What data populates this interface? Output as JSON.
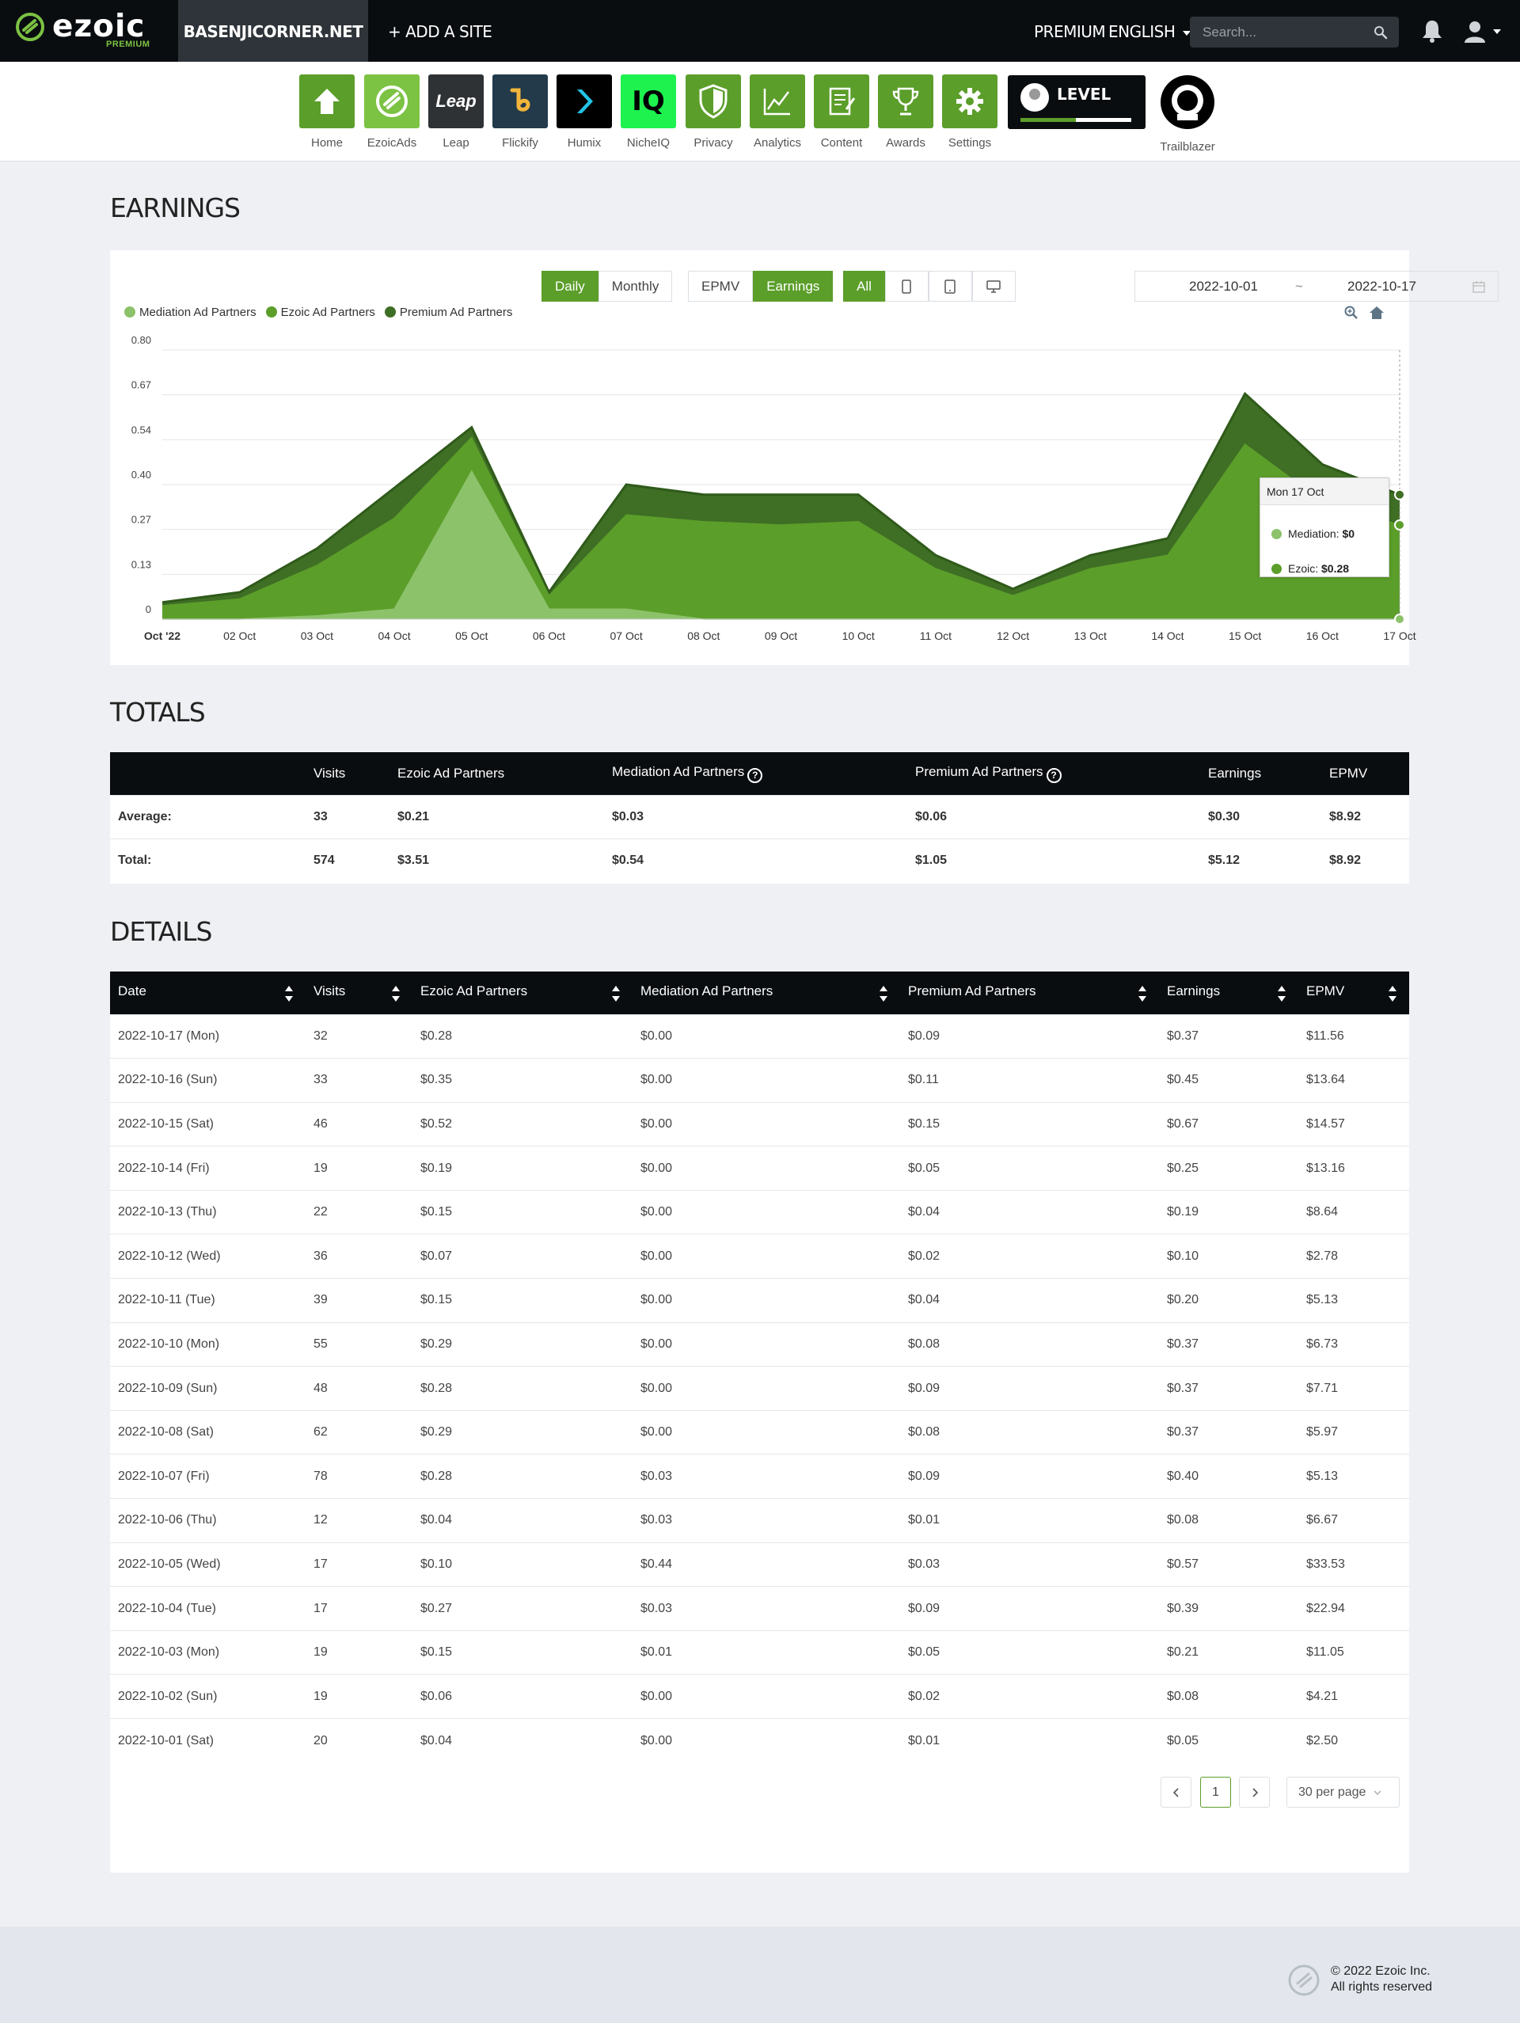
{
  "nav": {
    "logo": "ezoic",
    "logo_sub": "PREMIUM",
    "site": "BASENJICORNER.NET",
    "add_site": "+ ADD A SITE",
    "premium": "PREMIUM",
    "language": "ENGLISH",
    "search_placeholder": "Search..."
  },
  "apps": [
    {
      "label": "Home",
      "icon": "home-icon"
    },
    {
      "label": "EzoicAds",
      "icon": "ezoicads-icon"
    },
    {
      "label": "Leap",
      "icon": "leap-icon",
      "text": "Leap"
    },
    {
      "label": "Flickify",
      "icon": "flickify-icon"
    },
    {
      "label": "Humix",
      "icon": "humix-icon"
    },
    {
      "label": "NicheIQ",
      "icon": "nicheiq-icon",
      "text": "IQ"
    },
    {
      "label": "Privacy",
      "icon": "shield-icon"
    },
    {
      "label": "Analytics",
      "icon": "analytics-icon"
    },
    {
      "label": "Content",
      "icon": "content-icon"
    },
    {
      "label": "Awards",
      "icon": "trophy-icon"
    },
    {
      "label": "Settings",
      "icon": "gear-icon"
    }
  ],
  "level_badge": {
    "text": "LEVEL",
    "progress": 0.5
  },
  "trailblazer": {
    "label": "Trailblazer"
  },
  "earnings": {
    "title": "EARNINGS",
    "buttons": {
      "daily": "Daily",
      "monthly": "Monthly",
      "epmv": "EPMV",
      "earnings": "Earnings",
      "all": "All"
    },
    "date_from": "2022-10-01",
    "date_sep": "~",
    "date_to": "2022-10-17",
    "tooltip": {
      "title": "Mon 17 Oct",
      "rows": [
        {
          "label": "Mediation:",
          "value": "$0"
        },
        {
          "label": "Ezoic:",
          "value": "$0.28"
        }
      ]
    }
  },
  "chart_data": {
    "type": "area",
    "stacked": true,
    "categories": [
      "Oct '22",
      "02 Oct",
      "03 Oct",
      "04 Oct",
      "05 Oct",
      "06 Oct",
      "07 Oct",
      "08 Oct",
      "09 Oct",
      "10 Oct",
      "11 Oct",
      "12 Oct",
      "13 Oct",
      "14 Oct",
      "15 Oct",
      "16 Oct",
      "17 Oct"
    ],
    "series": [
      {
        "name": "Mediation Ad Partners",
        "color": "#8cc26a",
        "values": [
          0.0,
          0.0,
          0.01,
          0.03,
          0.44,
          0.03,
          0.03,
          0.0,
          0.0,
          0.0,
          0.0,
          0.0,
          0.0,
          0.0,
          0.0,
          0.0,
          0.0
        ]
      },
      {
        "name": "Ezoic Ad Partners",
        "color": "#5b9e2a",
        "values": [
          0.04,
          0.06,
          0.15,
          0.27,
          0.1,
          0.04,
          0.28,
          0.29,
          0.28,
          0.29,
          0.15,
          0.07,
          0.15,
          0.19,
          0.52,
          0.35,
          0.28
        ]
      },
      {
        "name": "Premium Ad Partners",
        "color": "#3f6e25",
        "values": [
          0.01,
          0.02,
          0.05,
          0.09,
          0.03,
          0.01,
          0.09,
          0.08,
          0.09,
          0.08,
          0.04,
          0.02,
          0.04,
          0.05,
          0.15,
          0.11,
          0.09
        ]
      }
    ],
    "ylim": [
      0,
      0.8
    ],
    "yticks": [
      "0",
      "0.13",
      "0.27",
      "0.40",
      "0.54",
      "0.67",
      "0.80"
    ],
    "legend": "top-left",
    "grid": true
  },
  "totals": {
    "title": "TOTALS",
    "headers": [
      "",
      "Visits",
      "Ezoic Ad Partners",
      "Mediation Ad Partners",
      "Premium Ad Partners",
      "Earnings",
      "EPMV"
    ],
    "rows": [
      [
        "Average:",
        "33",
        "$0.21",
        "$0.03",
        "$0.06",
        "$0.30",
        "$8.92"
      ],
      [
        "Total:",
        "574",
        "$3.51",
        "$0.54",
        "$1.05",
        "$5.12",
        "$8.92"
      ]
    ]
  },
  "details": {
    "title": "DETAILS",
    "headers": [
      "Date",
      "Visits",
      "Ezoic Ad Partners",
      "Mediation Ad Partners",
      "Premium Ad Partners",
      "Earnings",
      "EPMV"
    ],
    "rows": [
      [
        "2022-10-17 (Mon)",
        "32",
        "$0.28",
        "$0.00",
        "$0.09",
        "$0.37",
        "$11.56"
      ],
      [
        "2022-10-16 (Sun)",
        "33",
        "$0.35",
        "$0.00",
        "$0.11",
        "$0.45",
        "$13.64"
      ],
      [
        "2022-10-15 (Sat)",
        "46",
        "$0.52",
        "$0.00",
        "$0.15",
        "$0.67",
        "$14.57"
      ],
      [
        "2022-10-14 (Fri)",
        "19",
        "$0.19",
        "$0.00",
        "$0.05",
        "$0.25",
        "$13.16"
      ],
      [
        "2022-10-13 (Thu)",
        "22",
        "$0.15",
        "$0.00",
        "$0.04",
        "$0.19",
        "$8.64"
      ],
      [
        "2022-10-12 (Wed)",
        "36",
        "$0.07",
        "$0.00",
        "$0.02",
        "$0.10",
        "$2.78"
      ],
      [
        "2022-10-11 (Tue)",
        "39",
        "$0.15",
        "$0.00",
        "$0.04",
        "$0.20",
        "$5.13"
      ],
      [
        "2022-10-10 (Mon)",
        "55",
        "$0.29",
        "$0.00",
        "$0.08",
        "$0.37",
        "$6.73"
      ],
      [
        "2022-10-09 (Sun)",
        "48",
        "$0.28",
        "$0.00",
        "$0.09",
        "$0.37",
        "$7.71"
      ],
      [
        "2022-10-08 (Sat)",
        "62",
        "$0.29",
        "$0.00",
        "$0.08",
        "$0.37",
        "$5.97"
      ],
      [
        "2022-10-07 (Fri)",
        "78",
        "$0.28",
        "$0.03",
        "$0.09",
        "$0.40",
        "$5.13"
      ],
      [
        "2022-10-06 (Thu)",
        "12",
        "$0.04",
        "$0.03",
        "$0.01",
        "$0.08",
        "$6.67"
      ],
      [
        "2022-10-05 (Wed)",
        "17",
        "$0.10",
        "$0.44",
        "$0.03",
        "$0.57",
        "$33.53"
      ],
      [
        "2022-10-04 (Tue)",
        "17",
        "$0.27",
        "$0.03",
        "$0.09",
        "$0.39",
        "$22.94"
      ],
      [
        "2022-10-03 (Mon)",
        "19",
        "$0.15",
        "$0.01",
        "$0.05",
        "$0.21",
        "$11.05"
      ],
      [
        "2022-10-02 (Sun)",
        "19",
        "$0.06",
        "$0.00",
        "$0.02",
        "$0.08",
        "$4.21"
      ],
      [
        "2022-10-01 (Sat)",
        "20",
        "$0.04",
        "$0.00",
        "$0.01",
        "$0.05",
        "$2.50"
      ]
    ]
  },
  "pagination": {
    "page": "1",
    "per_page": "30 per page"
  },
  "footer": {
    "line1": "© 2022 Ezoic Inc.",
    "line2": "All rights reserved"
  }
}
